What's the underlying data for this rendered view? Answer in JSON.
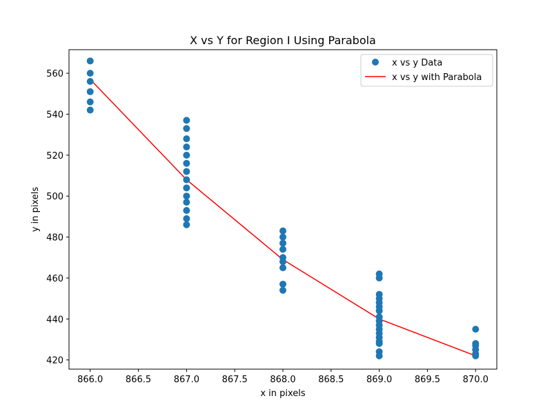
{
  "chart_data": {
    "type": "scatter",
    "title": "X vs Y for Region I Using Parabola",
    "xlabel": "x in pixels",
    "ylabel": "y in pixels",
    "xlim": [
      865.78,
      870.22
    ],
    "ylim": [
      415.5,
      571.5
    ],
    "xticks": [
      866.0,
      866.5,
      867.0,
      867.5,
      868.0,
      868.5,
      869.0,
      869.5,
      870.0
    ],
    "xtick_labels": [
      "866.0",
      "866.5",
      "867.0",
      "867.5",
      "868.0",
      "868.5",
      "869.0",
      "869.5",
      "870.0"
    ],
    "yticks": [
      420,
      440,
      460,
      480,
      500,
      520,
      540,
      560
    ],
    "ytick_labels": [
      "420",
      "440",
      "460",
      "480",
      "500",
      "520",
      "540",
      "560"
    ],
    "grid": false,
    "legend_position": "top-right",
    "colors": {
      "scatter": "#1f77b4",
      "fit": "#ff0000",
      "axes": "#000000"
    },
    "series": [
      {
        "name": "x vs y Data",
        "kind": "scatter",
        "points": [
          [
            866,
            566
          ],
          [
            866,
            560
          ],
          [
            866,
            556
          ],
          [
            866,
            551
          ],
          [
            866,
            546
          ],
          [
            866,
            542
          ],
          [
            867,
            537
          ],
          [
            867,
            533
          ],
          [
            867,
            528
          ],
          [
            867,
            524
          ],
          [
            867,
            520
          ],
          [
            867,
            516
          ],
          [
            867,
            512
          ],
          [
            867,
            508
          ],
          [
            867,
            504
          ],
          [
            867,
            500
          ],
          [
            867,
            497
          ],
          [
            867,
            493
          ],
          [
            867,
            489
          ],
          [
            867,
            486
          ],
          [
            868,
            483
          ],
          [
            868,
            480
          ],
          [
            868,
            477
          ],
          [
            868,
            474
          ],
          [
            868,
            470
          ],
          [
            868,
            468
          ],
          [
            868,
            465
          ],
          [
            868,
            457
          ],
          [
            868,
            454
          ],
          [
            869,
            462
          ],
          [
            869,
            460
          ],
          [
            869,
            452
          ],
          [
            869,
            450
          ],
          [
            869,
            448
          ],
          [
            869,
            446
          ],
          [
            869,
            444
          ],
          [
            869,
            441
          ],
          [
            869,
            439
          ],
          [
            869,
            437
          ],
          [
            869,
            435
          ],
          [
            869,
            433
          ],
          [
            869,
            431
          ],
          [
            869,
            429
          ],
          [
            869,
            428
          ],
          [
            869,
            424
          ],
          [
            869,
            422
          ],
          [
            870,
            435
          ],
          [
            870,
            428
          ],
          [
            870,
            427
          ],
          [
            870,
            425
          ],
          [
            870,
            423
          ],
          [
            870,
            422
          ]
        ]
      },
      {
        "name": "x vs y with Parabola",
        "kind": "line",
        "points": [
          [
            866,
            557
          ],
          [
            867,
            508
          ],
          [
            868,
            469
          ],
          [
            869,
            440
          ],
          [
            870,
            422
          ]
        ]
      }
    ]
  }
}
